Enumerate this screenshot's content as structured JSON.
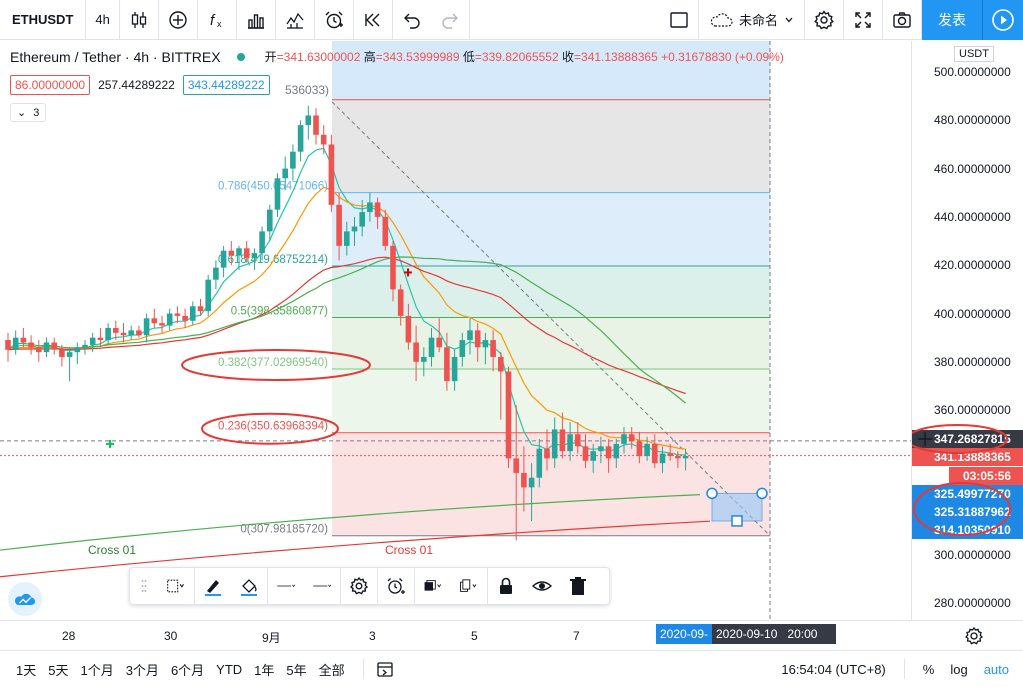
{
  "toolbar": {
    "symbol": "ETHUSDT",
    "interval": "4h",
    "layout_name": "未命名",
    "publish_label": "发表",
    "icons": [
      "candles-icon",
      "add-indicator-icon",
      "fx-icon",
      "bar-chart-icon",
      "templates-icon",
      "alert-icon",
      "replay-icon",
      "undo-icon",
      "redo-icon",
      "fullscreen-box-icon",
      "cloud-icon",
      "settings-gear-icon",
      "expand-icon",
      "camera-icon",
      "play-icon"
    ]
  },
  "legend": {
    "title": "Ethereum / Tether · 4h · BITTREX",
    "open_label": "开",
    "open": "341.63000002",
    "high_label": "高",
    "high": "343.53999989",
    "low_label": "低",
    "low": "339.82065552",
    "close_label": "收",
    "close": "341.13888365",
    "change": "+0.31678830 (+0.09%)"
  },
  "indicators": {
    "values": [
      "86.00000000",
      "257.44289222",
      "343.44289222"
    ],
    "hidden_partial": "536033)",
    "collapse_count": "3"
  },
  "fib_levels": [
    {
      "label": "0.786(450.05471066)",
      "price": 450.05,
      "color": "#64b5f6"
    },
    {
      "label": "0.618(419.68752214)",
      "price": 419.69,
      "color": "#26a69a"
    },
    {
      "label": "0.5(398.35860877)",
      "price": 398.36,
      "color": "#4caf50"
    },
    {
      "label": "0.382(377.02969540)",
      "price": 377.03,
      "color": "#81c784"
    },
    {
      "label": "0.236(350.63968394)",
      "price": 350.64,
      "color": "#ef5350"
    },
    {
      "label": "0(307.98185720)",
      "price": 307.98,
      "color": "#787b86"
    }
  ],
  "annotations": [
    "Cross 01",
    "Cross 01"
  ],
  "price_axis": {
    "currency": "USDT",
    "ticks": [
      "500.00000000",
      "480.00000000",
      "460.00000000",
      "440.00000000",
      "420.00000000",
      "400.00000000",
      "380.00000000",
      "360.00000000",
      "340.00000000",
      "320.00000000",
      "300.00000000",
      "280.00000000"
    ],
    "labels": [
      {
        "text": "347.26827815",
        "color": "#363a45"
      },
      {
        "text": "341.13888365",
        "color": "#ef5350"
      },
      {
        "text": "03:05:56",
        "color": "#ef5350"
      },
      {
        "text": "325.49977270",
        "color": "#1e88e5"
      },
      {
        "text": "325.31887962",
        "color": "#1e88e5"
      },
      {
        "text": "314.10350910",
        "color": "#1e88e5"
      }
    ]
  },
  "time_axis": {
    "ticks": [
      "28",
      "30",
      "9月",
      "3",
      "5",
      "7"
    ],
    "highlight_start": "2020-09-",
    "highlight_end": "2020-09-10",
    "highlight_time": "20:00"
  },
  "bottom_bar": {
    "ranges": [
      "1天",
      "5天",
      "1个月",
      "3个月",
      "6个月",
      "YTD",
      "1年",
      "5年",
      "全部"
    ],
    "clock": "16:54:04 (UTC+8)",
    "percent_label": "%",
    "log_label": "log",
    "auto_label": "auto"
  },
  "chart_data": {
    "type": "candlestick",
    "ylim": [
      270,
      505
    ],
    "yticks": [
      500,
      480,
      460,
      440,
      420,
      400,
      380,
      360,
      340,
      320,
      300,
      280
    ],
    "candles": [
      [
        389,
        392,
        380,
        385
      ],
      [
        385,
        393,
        383,
        390
      ],
      [
        390,
        394,
        386,
        388
      ],
      [
        388,
        391,
        383,
        386
      ],
      [
        386,
        389,
        380,
        384
      ],
      [
        384,
        390,
        382,
        388
      ],
      [
        388,
        390,
        383,
        385
      ],
      [
        385,
        387,
        378,
        382
      ],
      [
        382,
        386,
        372,
        384
      ],
      [
        384,
        388,
        379,
        386
      ],
      [
        386,
        389,
        383,
        387
      ],
      [
        387,
        392,
        384,
        390
      ],
      [
        390,
        394,
        386,
        389
      ],
      [
        389,
        396,
        387,
        394
      ],
      [
        394,
        397,
        389,
        392
      ],
      [
        392,
        396,
        388,
        391
      ],
      [
        391,
        395,
        389,
        393
      ],
      [
        393,
        395,
        390,
        391
      ],
      [
        391,
        400,
        388,
        398
      ],
      [
        398,
        402,
        394,
        396
      ],
      [
        396,
        399,
        392,
        395
      ],
      [
        395,
        402,
        393,
        400
      ],
      [
        400,
        403,
        396,
        399
      ],
      [
        399,
        402,
        394,
        397
      ],
      [
        397,
        405,
        395,
        403
      ],
      [
        403,
        406,
        399,
        401
      ],
      [
        401,
        416,
        399,
        414
      ],
      [
        414,
        422,
        410,
        419
      ],
      [
        419,
        428,
        415,
        426
      ],
      [
        426,
        430,
        420,
        424
      ],
      [
        424,
        428,
        418,
        427
      ],
      [
        427,
        430,
        421,
        423
      ],
      [
        423,
        427,
        418,
        425
      ],
      [
        425,
        436,
        422,
        434
      ],
      [
        434,
        445,
        430,
        443
      ],
      [
        443,
        458,
        440,
        456
      ],
      [
        456,
        465,
        451,
        460
      ],
      [
        460,
        470,
        455,
        467
      ],
      [
        467,
        480,
        463,
        478
      ],
      [
        478,
        486,
        472,
        482
      ],
      [
        482,
        485,
        470,
        474
      ],
      [
        474,
        478,
        466,
        470
      ],
      [
        470,
        474,
        442,
        445
      ],
      [
        445,
        450,
        422,
        428
      ],
      [
        428,
        438,
        424,
        434
      ],
      [
        434,
        440,
        428,
        436
      ],
      [
        436,
        447,
        432,
        442
      ],
      [
        442,
        450,
        438,
        446
      ],
      [
        446,
        448,
        435,
        440
      ],
      [
        440,
        443,
        426,
        428
      ],
      [
        428,
        430,
        405,
        410
      ],
      [
        410,
        412,
        395,
        399
      ],
      [
        399,
        404,
        385,
        388
      ],
      [
        388,
        395,
        372,
        380
      ],
      [
        380,
        386,
        374,
        382
      ],
      [
        382,
        394,
        378,
        390
      ],
      [
        390,
        398,
        384,
        386
      ],
      [
        386,
        392,
        368,
        372
      ],
      [
        372,
        385,
        368,
        382
      ],
      [
        382,
        392,
        378,
        389
      ],
      [
        389,
        398,
        383,
        393
      ],
      [
        393,
        396,
        380,
        386
      ],
      [
        386,
        392,
        379,
        389
      ],
      [
        389,
        393,
        376,
        382
      ],
      [
        382,
        384,
        356,
        376
      ],
      [
        376,
        378,
        336,
        340
      ],
      [
        340,
        362,
        306,
        334
      ],
      [
        334,
        345,
        318,
        328
      ],
      [
        328,
        338,
        314,
        332
      ],
      [
        332,
        348,
        328,
        344
      ],
      [
        344,
        352,
        335,
        340
      ],
      [
        340,
        357,
        336,
        352
      ],
      [
        352,
        359,
        340,
        343
      ],
      [
        343,
        355,
        339,
        350
      ],
      [
        350,
        355,
        342,
        345
      ],
      [
        345,
        350,
        336,
        339
      ],
      [
        339,
        346,
        334,
        343
      ],
      [
        343,
        349,
        338,
        345
      ],
      [
        345,
        348,
        334,
        340
      ],
      [
        340,
        348,
        336,
        346
      ],
      [
        346,
        353,
        342,
        350
      ],
      [
        350,
        353,
        344,
        347
      ],
      [
        347,
        351,
        338,
        341
      ],
      [
        341,
        349,
        339,
        346
      ],
      [
        346,
        350,
        336,
        338
      ],
      [
        338,
        345,
        334,
        342
      ],
      [
        342,
        346,
        339,
        341
      ],
      [
        341,
        343,
        336,
        340
      ],
      [
        340,
        344,
        335,
        341
      ]
    ],
    "ema_short_color": "#26c6a5",
    "ema_mid_color": "#ff9800",
    "ema_long_color": "#e53935",
    "ma_green_color": "#4caf50"
  }
}
